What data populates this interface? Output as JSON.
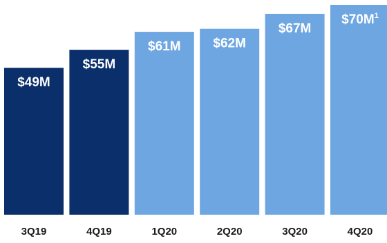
{
  "chart_data": {
    "type": "bar",
    "categories": [
      "3Q19",
      "4Q19",
      "1Q20",
      "2Q20",
      "3Q20",
      "4Q20"
    ],
    "values": [
      49,
      55,
      61,
      62,
      67,
      70
    ],
    "value_labels": [
      "$49M",
      "$55M",
      "$61M",
      "$62M",
      "$67M",
      "$70M"
    ],
    "footnote_marks": [
      "",
      "",
      "",
      "",
      "",
      "1"
    ],
    "bar_colors": [
      "#0b2f6b",
      "#0b2f6b",
      "#6ea6e2",
      "#6ea6e2",
      "#6ea6e2",
      "#6ea6e2"
    ],
    "title": "",
    "xlabel": "",
    "ylabel": "",
    "ylim": [
      0,
      72
    ],
    "grid": false,
    "legend": "none"
  }
}
